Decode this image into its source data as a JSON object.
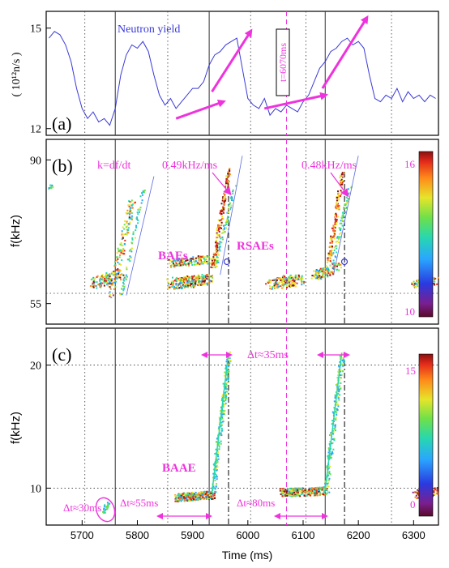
{
  "chart_data": [
    {
      "type": "line",
      "panel_label": "(a)",
      "ylabel": "( 10¹²n/s )",
      "ylim": [
        11.8,
        15.5
      ],
      "yticks": [
        12,
        15
      ],
      "xlim": [
        5635,
        6345
      ],
      "series": [
        {
          "name": "Neutron yield",
          "x": [
            5640,
            5650,
            5660,
            5670,
            5680,
            5690,
            5700,
            5710,
            5720,
            5730,
            5740,
            5750,
            5760,
            5770,
            5780,
            5790,
            5800,
            5810,
            5820,
            5830,
            5840,
            5850,
            5860,
            5870,
            5880,
            5890,
            5900,
            5910,
            5920,
            5930,
            5940,
            5950,
            5960,
            5970,
            5980,
            5990,
            6000,
            6010,
            6020,
            6030,
            6040,
            6050,
            6060,
            6070,
            6080,
            6090,
            6100,
            6110,
            6120,
            6130,
            6140,
            6150,
            6160,
            6170,
            6180,
            6190,
            6200,
            6210,
            6220,
            6230,
            6240,
            6250,
            6260,
            6270,
            6280,
            6290,
            6300,
            6310,
            6320,
            6330,
            6340
          ],
          "y": [
            14.7,
            14.9,
            14.8,
            14.5,
            14.0,
            13.2,
            12.6,
            12.3,
            12.5,
            12.2,
            12.3,
            12.1,
            12.6,
            13.6,
            14.2,
            14.5,
            14.4,
            14.6,
            14.3,
            13.6,
            13.0,
            12.7,
            12.9,
            12.6,
            12.8,
            13.0,
            13.2,
            13.2,
            13.4,
            13.9,
            14.2,
            14.3,
            14.5,
            14.6,
            14.7,
            13.8,
            12.9,
            12.7,
            12.6,
            12.9,
            12.4,
            12.6,
            12.5,
            12.7,
            12.6,
            12.5,
            12.8,
            13.0,
            13.4,
            13.8,
            14.0,
            14.3,
            14.4,
            14.6,
            14.7,
            14.5,
            14.6,
            14.4,
            13.6,
            12.9,
            12.8,
            13.0,
            12.9,
            13.2,
            12.8,
            13.1,
            12.9,
            13.0,
            12.8,
            13.0,
            12.9
          ]
        }
      ],
      "annotations": [
        {
          "text": "t=6070ms",
          "color": "#ee33dd",
          "boxed": true,
          "rotated": true
        }
      ],
      "arrows": [
        {
          "from": [
            5870,
            12.3
          ],
          "to": [
            5955,
            12.8
          ]
        },
        {
          "from": [
            5935,
            13.1
          ],
          "to": [
            6005,
            14.9
          ]
        },
        {
          "from": [
            6030,
            12.6
          ],
          "to": [
            6140,
            13.0
          ]
        },
        {
          "from": [
            6135,
            13.2
          ],
          "to": [
            6215,
            15.3
          ]
        }
      ]
    },
    {
      "type": "heatmap",
      "panel_label": "(b)",
      "ylabel": "f(kHz)",
      "ylim": [
        50,
        95
      ],
      "yticks": [
        55,
        90
      ],
      "xlim": [
        5635,
        6345
      ],
      "colorbar": {
        "ticks": [
          "16",
          "10"
        ],
        "range": [
          10,
          16
        ]
      },
      "annotations": [
        {
          "text": "k=df/dt",
          "color": "#ee33dd"
        },
        {
          "text": "0.49kHz/ms",
          "color": "#ee33dd"
        },
        {
          "text": "0.48kHz/ms",
          "color": "#ee33dd"
        },
        {
          "text": "BAEs",
          "color": "#ee33dd"
        },
        {
          "text": "RSAEs",
          "color": "#ee33dd"
        }
      ]
    },
    {
      "type": "heatmap",
      "panel_label": "(c)",
      "ylabel": "f(kHz)",
      "xlabel": "Time (ms)",
      "ylim": [
        7,
        23
      ],
      "yticks": [
        10,
        20
      ],
      "xlim": [
        5635,
        6345
      ],
      "xticks": [
        5700,
        5800,
        5900,
        6000,
        6100,
        6200,
        6300
      ],
      "colorbar": {
        "ticks": [
          "15",
          "0"
        ],
        "range": [
          0,
          15
        ]
      },
      "annotations": [
        {
          "text": "Δt≈30ms",
          "color": "#ee33dd"
        },
        {
          "text": "Δt≈55ms",
          "color": "#ee33dd"
        },
        {
          "text": "Δt≈80ms",
          "color": "#ee33dd"
        },
        {
          "text": "Δt≈35ms",
          "color": "#ee33dd"
        },
        {
          "text": "BAAE",
          "color": "#ee33dd"
        }
      ]
    }
  ],
  "colors": {
    "accent": "#ee33dd",
    "line": "#3a3ad8",
    "axis": "#000000"
  }
}
